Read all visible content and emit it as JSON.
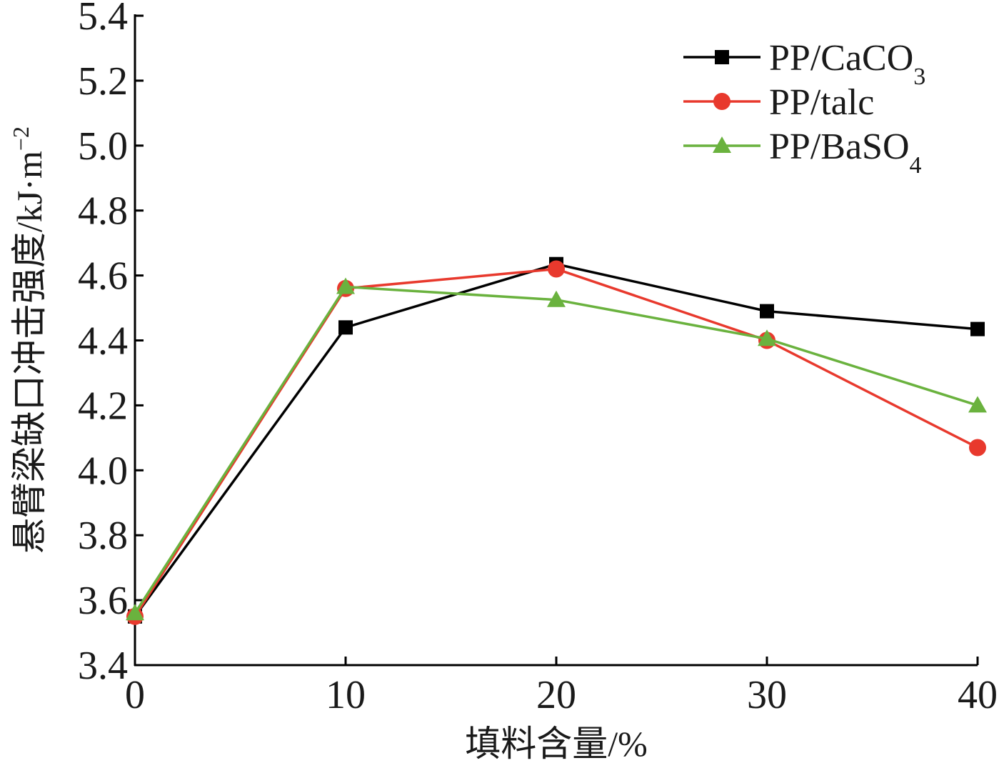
{
  "chart_data": {
    "type": "line",
    "x": [
      0,
      10,
      20,
      30,
      40
    ],
    "xticks": [
      "0",
      "10",
      "20",
      "30",
      "40"
    ],
    "yticks": [
      "3.4",
      "3.6",
      "3.8",
      "4.0",
      "4.2",
      "4.4",
      "4.6",
      "4.8",
      "5.0",
      "5.2",
      "5.4"
    ],
    "xlim": [
      0,
      40
    ],
    "ylim": [
      3.4,
      5.4
    ],
    "xlabel": "填料含量/%",
    "ylabel": {
      "main": "悬臂梁缺口冲击强度/kJ·m",
      "sup": "−2"
    },
    "grid": false,
    "legend_position": "top-right",
    "series": [
      {
        "name": "PP/CaCO3",
        "label_main": "PP/CaCO",
        "label_sub": "3",
        "color": "#000000",
        "marker": "square",
        "values": [
          3.55,
          4.44,
          4.635,
          4.49,
          4.435
        ]
      },
      {
        "name": "PP/talc",
        "label_main": "PP/talc",
        "label_sub": "",
        "color": "#e8392d",
        "marker": "circle",
        "values": [
          3.55,
          4.56,
          4.62,
          4.4,
          4.07
        ]
      },
      {
        "name": "PP/BaSO4",
        "label_main": "PP/BaSO",
        "label_sub": "4",
        "color": "#6ab23e",
        "marker": "triangle",
        "values": [
          3.56,
          4.565,
          4.525,
          4.405,
          4.2
        ]
      }
    ]
  }
}
